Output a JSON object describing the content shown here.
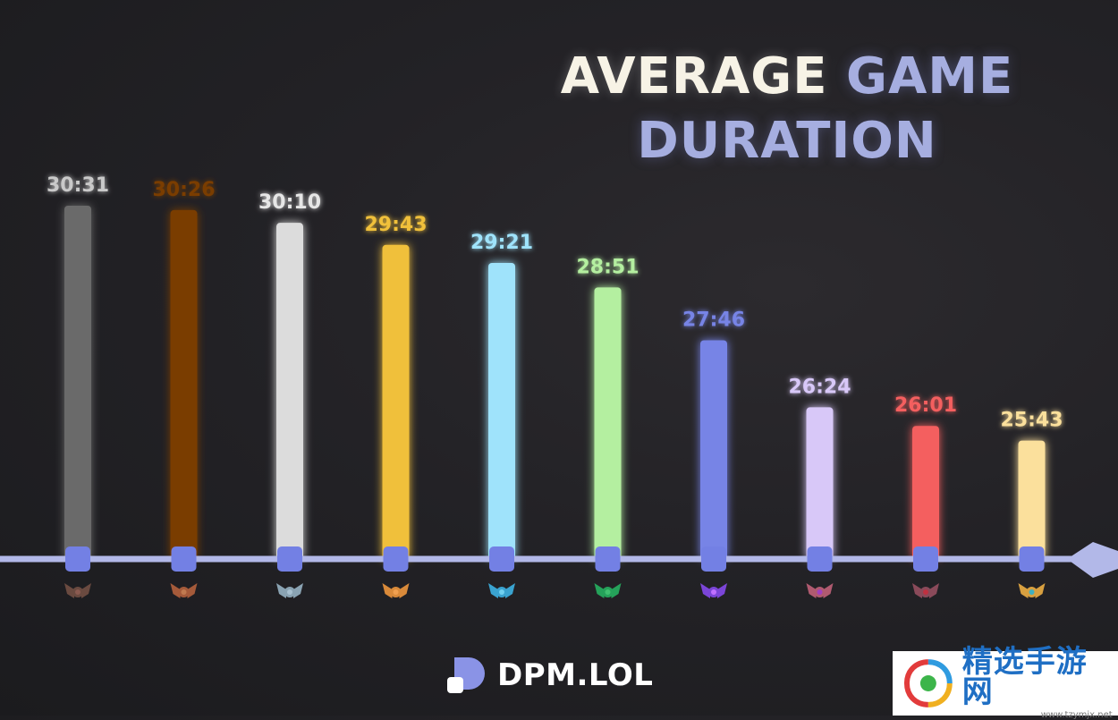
{
  "title": {
    "line1_part1": "AVERAGE",
    "line1_part2": "GAME",
    "line2": "DURATION"
  },
  "colors": {
    "axis": "#b2b8e8",
    "marker": "#7380e4",
    "title_white": "#f7f3e6",
    "title_blue": "#a6aee0"
  },
  "chart_data": {
    "type": "bar",
    "title": "AVERAGE GAME DURATION",
    "xlabel": "",
    "ylabel": "",
    "unit": "minutes:seconds",
    "categories": [
      "iron",
      "bronze",
      "silver",
      "gold",
      "platinum",
      "emerald",
      "diamond",
      "master",
      "grandmaster",
      "challenger"
    ],
    "labels": [
      "30:31",
      "30:26",
      "30:10",
      "29:43",
      "29:21",
      "28:51",
      "27:46",
      "26:24",
      "26:01",
      "25:43"
    ],
    "values": [
      30.52,
      30.43,
      30.17,
      29.72,
      29.35,
      28.85,
      27.77,
      26.4,
      26.02,
      25.72
    ],
    "bar_colors": [
      "#6a6a6a",
      "#7a3d06",
      "#dcdcdc",
      "#f0c03a",
      "#9fe3fb",
      "#b4efa0",
      "#7784e6",
      "#d8c8f8",
      "#f45f5f",
      "#fbe09c"
    ],
    "label_colors": [
      "#c9c9c9",
      "#7a3d06",
      "#e6e6e6",
      "#f0c03a",
      "#9fe3fb",
      "#b4efa0",
      "#7784e6",
      "#d8c8f8",
      "#f45f5f",
      "#fbe09c"
    ],
    "icon_colors": [
      "#6a4a40",
      "#a55a3a",
      "#8aa3b3",
      "#d98a3a",
      "#3aa3d0",
      "#25a25a",
      "#7b45d8",
      "#b05a70",
      "#8a4a5a",
      "#d8a040"
    ],
    "icon_gems": [
      "#8a5a50",
      "#c07a50",
      "#a8c0d0",
      "#f0a050",
      "#70d0f0",
      "#40c070",
      "#c070ff",
      "#a040c0",
      "#c03040",
      "#40b0c0"
    ],
    "ylim": [
      0,
      31
    ],
    "legend": "none"
  },
  "brand": {
    "name": "DPM.LOL"
  },
  "watermark": {
    "main": "精选手游网",
    "url": "www.tzymjx.net"
  }
}
